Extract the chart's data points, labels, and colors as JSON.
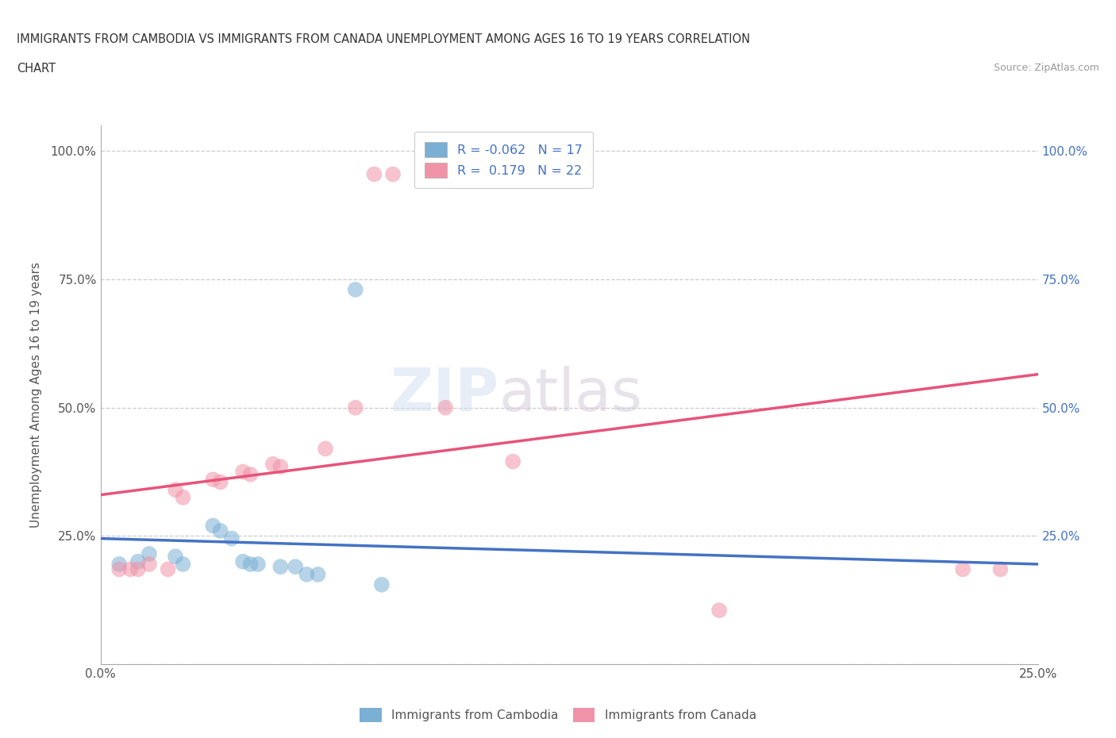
{
  "title_line1": "IMMIGRANTS FROM CAMBODIA VS IMMIGRANTS FROM CANADA UNEMPLOYMENT AMONG AGES 16 TO 19 YEARS CORRELATION",
  "title_line2": "CHART",
  "source": "Source: ZipAtlas.com",
  "ylabel": "Unemployment Among Ages 16 to 19 years",
  "xlim": [
    0.0,
    0.25
  ],
  "ylim": [
    0.0,
    1.05
  ],
  "xtick_positions": [
    0.0,
    0.05,
    0.1,
    0.15,
    0.2,
    0.25
  ],
  "ytick_positions": [
    0.0,
    0.25,
    0.5,
    0.75,
    1.0
  ],
  "xticklabels": [
    "0.0%",
    "",
    "",
    "",
    "",
    "25.0%"
  ],
  "yticklabels_left": [
    "",
    "25.0%",
    "50.0%",
    "75.0%",
    "100.0%"
  ],
  "yticklabels_right": [
    "",
    "25.0%",
    "50.0%",
    "75.0%",
    "100.0%"
  ],
  "watermark1": "ZIP",
  "watermark2": "atlas",
  "cambodia_color": "#7bafd4",
  "canada_color": "#f093a8",
  "cambodia_line_color": "#4472c4",
  "canada_line_color": "#e8537a",
  "background_color": "#ffffff",
  "cambodia_scatter": [
    [
      0.005,
      0.195
    ],
    [
      0.01,
      0.2
    ],
    [
      0.013,
      0.215
    ],
    [
      0.02,
      0.21
    ],
    [
      0.022,
      0.195
    ],
    [
      0.03,
      0.27
    ],
    [
      0.032,
      0.26
    ],
    [
      0.035,
      0.245
    ],
    [
      0.038,
      0.2
    ],
    [
      0.04,
      0.195
    ],
    [
      0.042,
      0.195
    ],
    [
      0.048,
      0.19
    ],
    [
      0.052,
      0.19
    ],
    [
      0.055,
      0.175
    ],
    [
      0.058,
      0.175
    ],
    [
      0.068,
      0.73
    ],
    [
      0.075,
      0.155
    ]
  ],
  "canada_scatter": [
    [
      0.005,
      0.185
    ],
    [
      0.008,
      0.185
    ],
    [
      0.01,
      0.185
    ],
    [
      0.013,
      0.195
    ],
    [
      0.018,
      0.185
    ],
    [
      0.02,
      0.34
    ],
    [
      0.022,
      0.325
    ],
    [
      0.03,
      0.36
    ],
    [
      0.032,
      0.355
    ],
    [
      0.038,
      0.375
    ],
    [
      0.04,
      0.37
    ],
    [
      0.046,
      0.39
    ],
    [
      0.048,
      0.385
    ],
    [
      0.06,
      0.42
    ],
    [
      0.068,
      0.5
    ],
    [
      0.073,
      0.955
    ],
    [
      0.078,
      0.955
    ],
    [
      0.092,
      0.5
    ],
    [
      0.11,
      0.395
    ],
    [
      0.165,
      0.105
    ],
    [
      0.23,
      0.185
    ],
    [
      0.24,
      0.185
    ]
  ]
}
